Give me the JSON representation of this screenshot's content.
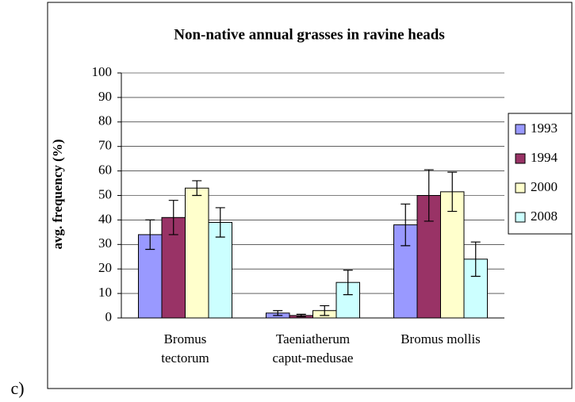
{
  "label": "c)",
  "chart_data": {
    "type": "bar",
    "title": "Non-native annual grasses in ravine heads",
    "y_label": "avg. frequency (%)",
    "categories": [
      "Bromus\ntectorum",
      "Taeniatherum\ncaput-medusae",
      "Bromus mollis"
    ],
    "series": [
      {
        "name": "1993",
        "color": "#9999ff",
        "values": [
          34,
          2,
          38
        ],
        "errors": [
          6,
          1,
          8.5
        ]
      },
      {
        "name": "1994",
        "color": "#993366",
        "values": [
          41,
          1,
          50
        ],
        "errors": [
          7,
          0.5,
          10.5
        ]
      },
      {
        "name": "2000",
        "color": "#ffffcc",
        "values": [
          53,
          3,
          51.5
        ],
        "errors": [
          3,
          2,
          8
        ]
      },
      {
        "name": "2008",
        "color": "#ccffff",
        "values": [
          39,
          14.5,
          24
        ],
        "errors": [
          6,
          5,
          7
        ]
      }
    ],
    "ylim": [
      0,
      100
    ],
    "yticks": [
      0,
      10,
      20,
      30,
      40,
      50,
      60,
      70,
      80,
      90,
      100
    ],
    "grid": true,
    "legend": "right"
  }
}
